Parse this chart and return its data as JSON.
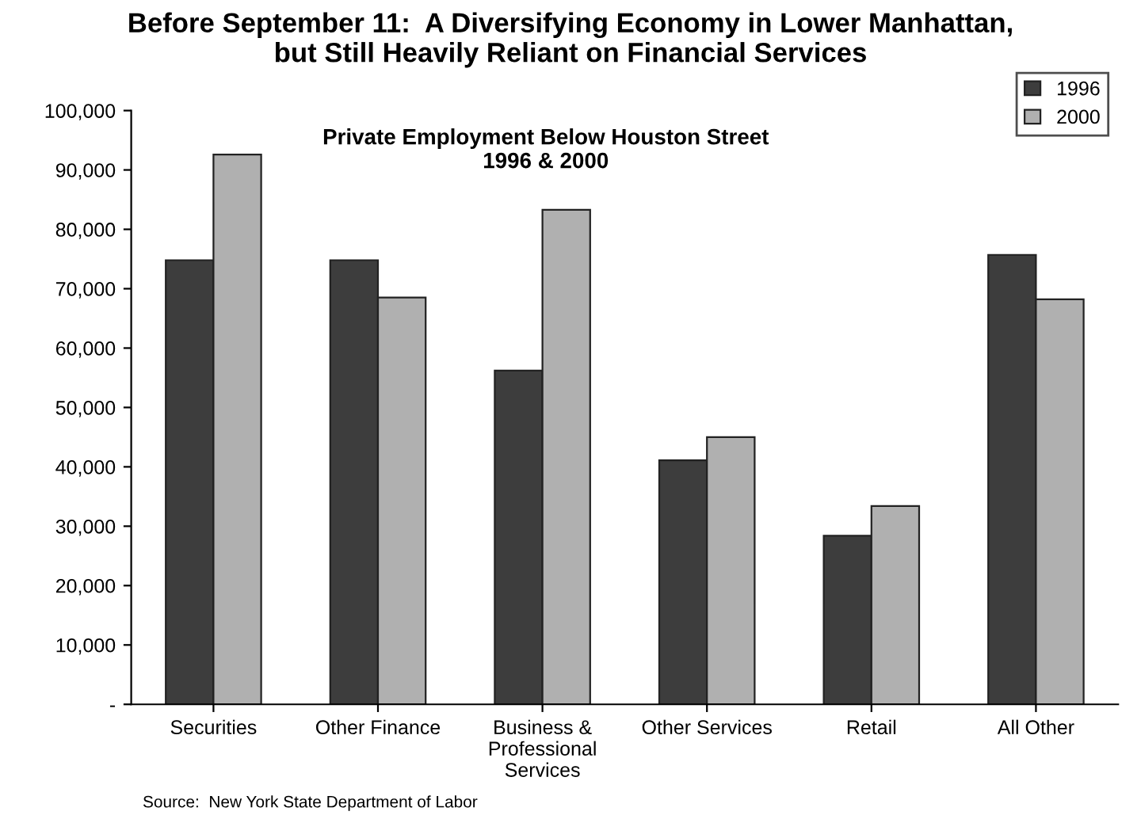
{
  "chart_data": {
    "type": "bar",
    "title": "Before September 11:  A Diversifying Economy in Lower Manhattan,\nbut Still Heavily Reliant on Financial Services",
    "subtitle": "Private Employment Below Houston Street\n1996 & 2000",
    "categories": [
      "Securities",
      "Other Finance",
      "Business &\nProfessional\nServices",
      "Other Services",
      "Retail",
      "All Other"
    ],
    "series": [
      {
        "name": "1996",
        "color": "#3d3d3d",
        "values": [
          74800,
          74800,
          56200,
          41100,
          28400,
          75700
        ]
      },
      {
        "name": "2000",
        "color": "#b0b0b0",
        "values": [
          92600,
          68500,
          83300,
          45000,
          33400,
          68200
        ]
      }
    ],
    "ylim": [
      0,
      100000
    ],
    "yticks": [
      {
        "value": 0,
        "label": "-"
      },
      {
        "value": 10000,
        "label": "10,000"
      },
      {
        "value": 20000,
        "label": "20,000"
      },
      {
        "value": 30000,
        "label": "30,000"
      },
      {
        "value": 40000,
        "label": "40,000"
      },
      {
        "value": 50000,
        "label": "50,000"
      },
      {
        "value": 60000,
        "label": "60,000"
      },
      {
        "value": 70000,
        "label": "70,000"
      },
      {
        "value": 80000,
        "label": "80,000"
      },
      {
        "value": 90000,
        "label": "90,000"
      },
      {
        "value": 100000,
        "label": "100,000"
      }
    ],
    "grid": false,
    "legend": "top right",
    "annotations": [
      "Source:  New York State Department of Labor"
    ]
  }
}
